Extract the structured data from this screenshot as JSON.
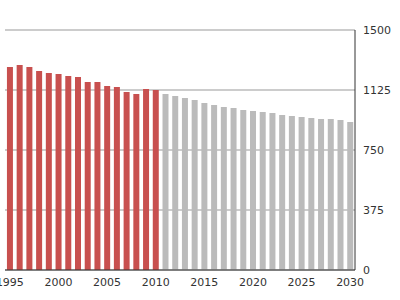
{
  "chart_data": {
    "type": "bar",
    "categories": [
      "1995",
      null,
      null,
      null,
      null,
      "2000",
      null,
      null,
      null,
      null,
      "2005",
      null,
      null,
      null,
      null,
      "2010",
      null,
      null,
      null,
      null,
      "2015",
      null,
      null,
      null,
      null,
      "2020",
      null,
      null,
      null,
      null,
      "2025",
      null,
      null,
      null,
      null,
      "2030"
    ],
    "values": [
      1269,
      1281,
      1269,
      1244,
      1231,
      1225,
      1213,
      1206,
      1175,
      1175,
      1150,
      1144,
      1113,
      1100,
      1131,
      1125,
      1100,
      1088,
      1075,
      1063,
      1044,
      1031,
      1019,
      1013,
      1000,
      994,
      988,
      981,
      969,
      963,
      956,
      950,
      944,
      944,
      938,
      925
    ],
    "colors": [
      "#c8504f",
      "#c8504f",
      "#c8504f",
      "#c8504f",
      "#c8504f",
      "#c8504f",
      "#c8504f",
      "#c8504f",
      "#c8504f",
      "#c8504f",
      "#c8504f",
      "#c8504f",
      "#c8504f",
      "#c8504f",
      "#c8504f",
      "#c8504f",
      "#bbbbbb",
      "#bbbbbb",
      "#bbbbbb",
      "#bbbbbb",
      "#bbbbbb",
      "#bbbbbb",
      "#bbbbbb",
      "#bbbbbb",
      "#bbbbbb",
      "#bbbbbb",
      "#bbbbbb",
      "#bbbbbb",
      "#bbbbbb",
      "#bbbbbb",
      "#bbbbbb",
      "#bbbbbb",
      "#bbbbbb",
      "#bbbbbb",
      "#bbbbbb",
      "#bbbbbb"
    ],
    "ylim": [
      0,
      1500
    ],
    "yticks": [
      0,
      375,
      750,
      1125,
      1500
    ],
    "grid": true
  }
}
